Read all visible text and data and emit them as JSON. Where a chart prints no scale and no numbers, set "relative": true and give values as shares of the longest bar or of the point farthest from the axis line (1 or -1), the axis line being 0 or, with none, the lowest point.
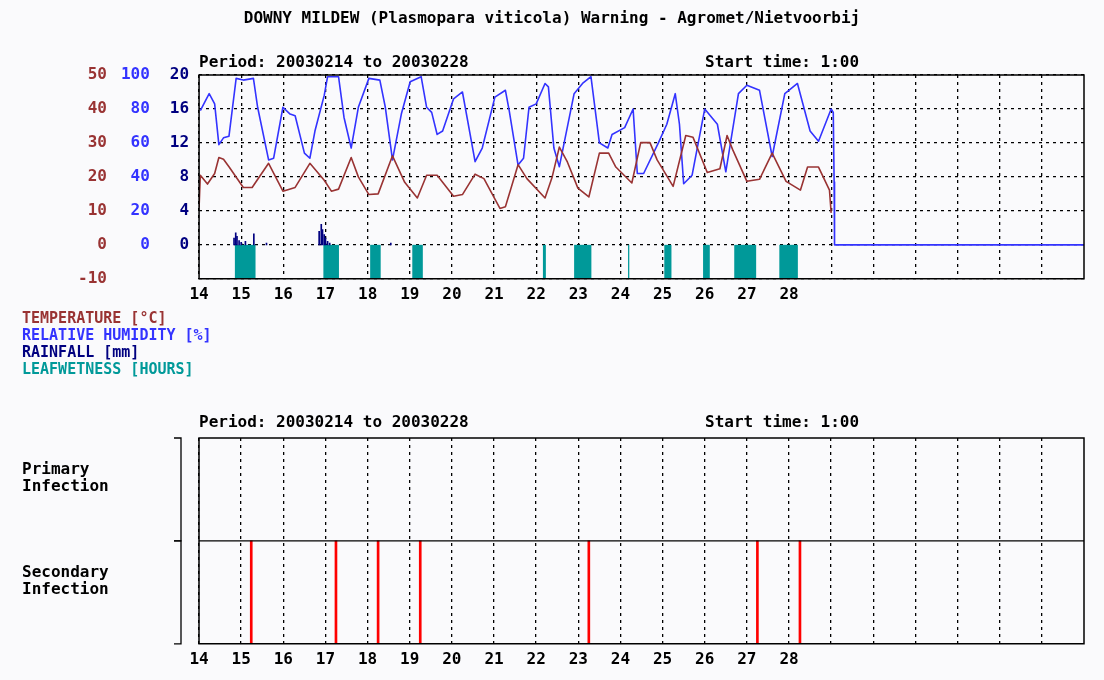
{
  "chart_data": [
    {
      "type": "line",
      "title": "DOWNY MILDEW (Plasmopara viticola) Warning - Agromet/Nietvoorbij",
      "subtitle": "Period: 20030214 to 20030228",
      "annotations": [
        "Start time: 1:00"
      ],
      "xlim": [
        14,
        35
      ],
      "xticks": [
        14,
        15,
        16,
        17,
        18,
        19,
        20,
        21,
        22,
        23,
        24,
        25,
        26,
        27,
        28,
        {
          "value": 29,
          "label": null
        },
        {
          "value": 30,
          "label": null
        },
        {
          "value": 31,
          "label": null
        },
        {
          "value": 32,
          "label": null
        },
        {
          "value": 33,
          "label": null
        },
        {
          "value": 34,
          "label": null
        }
      ],
      "ylim": [
        -10,
        50
      ],
      "yticks": [
        -10,
        0,
        10,
        20,
        30,
        40,
        50
      ],
      "y2lim": [
        -20,
        100
      ],
      "y2ticks": [
        0,
        20,
        40,
        60,
        80,
        100
      ],
      "y3lim": [
        -4,
        20
      ],
      "y3ticks": [
        0,
        4,
        8,
        12,
        16,
        20
      ],
      "grid": true,
      "legend": "bottom left",
      "series": [
        {
          "name": "TEMPERATURE [°C]",
          "color": "#993333",
          "x": [
            14.0,
            14.03,
            14.2,
            14.37,
            14.47,
            14.58,
            14.71,
            15.05,
            15.26,
            15.65,
            15.99,
            16.28,
            16.63,
            16.97,
            17.14,
            17.31,
            17.61,
            17.78,
            18.03,
            18.25,
            18.59,
            18.88,
            19.18,
            19.4,
            19.65,
            20.04,
            20.25,
            20.55,
            20.76,
            21.14,
            21.27,
            21.57,
            21.78,
            22.21,
            22.38,
            22.55,
            22.74,
            22.99,
            23.25,
            23.5,
            23.72,
            23.89,
            24.27,
            24.48,
            24.7,
            24.87,
            25.25,
            25.55,
            25.72,
            26.06,
            26.36,
            26.53,
            26.66,
            27.0,
            27.3,
            27.6,
            27.93,
            28.27,
            28.44,
            28.7,
            28.96,
            29.0
          ],
          "values": [
            11,
            20.5,
            17.9,
            21,
            25.7,
            25.2,
            23,
            16.9,
            16.9,
            24,
            15.8,
            16.9,
            24,
            19,
            15.8,
            16.4,
            25.7,
            20,
            14.8,
            15,
            26.2,
            18.4,
            13.8,
            20.5,
            20.5,
            14.3,
            14.8,
            20.8,
            19.5,
            10.7,
            11.2,
            23.6,
            19.5,
            13.8,
            20,
            28.8,
            24.4,
            16.7,
            14.1,
            27,
            27,
            22.9,
            18.2,
            30.1,
            30.1,
            25,
            17.2,
            32.2,
            31.7,
            21.3,
            22.4,
            32.2,
            28.1,
            18.7,
            19.3,
            27,
            18.7,
            16.1,
            22.9,
            22.9,
            16.1,
            9.4
          ]
        },
        {
          "name": "RELATIVE HUMIDITY [%]",
          "color": "#3333ff",
          "axis": "y2",
          "x": [
            14.03,
            14.24,
            14.37,
            14.47,
            14.58,
            14.71,
            14.88,
            15.05,
            15.29,
            15.39,
            15.65,
            15.77,
            15.99,
            16.16,
            16.28,
            16.5,
            16.63,
            16.75,
            16.97,
            17.05,
            17.31,
            17.44,
            17.61,
            17.78,
            18.03,
            18.29,
            18.42,
            18.59,
            18.8,
            19.01,
            19.27,
            19.4,
            19.52,
            19.65,
            19.78,
            20.04,
            20.25,
            20.55,
            20.72,
            21.02,
            21.27,
            21.36,
            21.57,
            21.7,
            21.83,
            22.0,
            22.21,
            22.29,
            22.42,
            22.55,
            22.9,
            23.1,
            23.3,
            23.5,
            23.7,
            23.8,
            24.1,
            24.3,
            24.4,
            24.55,
            24.9,
            25.1,
            25.3,
            25.4,
            25.5,
            25.7,
            26.0,
            26.3,
            26.5,
            26.8,
            27.0,
            27.3,
            27.6,
            27.9,
            28.2,
            28.5,
            28.7,
            29.0,
            29.05,
            29.07,
            29.08,
            35
          ],
          "values": [
            79,
            89,
            83,
            59,
            63,
            64,
            98,
            97,
            98,
            81,
            50,
            51,
            81,
            77,
            76,
            54,
            51,
            67,
            88,
            99,
            99,
            75,
            57,
            81,
            98,
            97,
            81,
            50,
            77,
            96,
            99,
            81,
            78,
            65,
            67,
            86,
            90,
            49,
            57,
            87,
            91,
            79,
            47,
            51,
            81,
            83,
            95,
            93,
            57,
            46,
            89,
            95,
            99,
            60,
            57,
            65,
            69,
            80,
            42,
            42,
            60,
            71,
            89,
            71,
            36,
            41,
            80,
            71,
            43,
            89,
            94,
            91,
            52,
            89,
            95,
            67,
            61,
            80,
            78,
            37,
            0,
            0
          ]
        },
        {
          "name": "RAINFALL [mm]",
          "color": "#000080",
          "type": "bar",
          "axis": "y3",
          "x": [
            14.83,
            14.87,
            14.9,
            14.95,
            15.0,
            15.1,
            15.3,
            15.6,
            16.85,
            16.9,
            16.93,
            16.97,
            17.0,
            17.05,
            17.1,
            18.55
          ],
          "values": [
            0.8,
            1.4,
            1.0,
            0.5,
            0.3,
            0.4,
            1.3,
            0.2,
            1.6,
            2.4,
            1.8,
            1.2,
            0.8,
            0.4,
            0.2,
            0.2
          ]
        }
      ],
      "bands": [
        {
          "axis": "x",
          "from": 14.85,
          "to": 15.34,
          "color": "#009999",
          "label": "LEAFWETNESS [HOURS]"
        },
        {
          "axis": "x",
          "from": 16.95,
          "to": 17.32,
          "color": "#009999"
        },
        {
          "axis": "x",
          "from": 18.06,
          "to": 18.31,
          "color": "#009999"
        },
        {
          "axis": "x",
          "from": 19.06,
          "to": 19.31,
          "color": "#009999"
        },
        {
          "axis": "x",
          "from": 22.16,
          "to": 22.23,
          "color": "#009999"
        },
        {
          "axis": "x",
          "from": 22.9,
          "to": 23.31,
          "color": "#009999"
        },
        {
          "axis": "x",
          "from": 24.18,
          "to": 24.21,
          "color": "#009999"
        },
        {
          "axis": "x",
          "from": 25.04,
          "to": 25.21,
          "color": "#009999"
        },
        {
          "axis": "x",
          "from": 25.96,
          "to": 26.12,
          "color": "#009999"
        },
        {
          "axis": "x",
          "from": 26.7,
          "to": 27.22,
          "color": "#009999"
        },
        {
          "axis": "x",
          "from": 27.77,
          "to": 28.21,
          "color": "#009999"
        }
      ]
    },
    {
      "type": "bar",
      "relative": true,
      "subtitle": "Period: 20030214 to 20030228",
      "annotations": [
        "Start time: 1:00"
      ],
      "xlim": [
        14,
        35
      ],
      "xticks": [
        14,
        15,
        16,
        17,
        18,
        19,
        20,
        21,
        22,
        23,
        24,
        25,
        26,
        27,
        28,
        {
          "value": 29,
          "label": null
        },
        {
          "value": 30,
          "label": null
        },
        {
          "value": 31,
          "label": null
        },
        {
          "value": 32,
          "label": null
        },
        {
          "value": 33,
          "label": null
        },
        {
          "value": 34,
          "label": null
        }
      ],
      "grid": "x",
      "series": [
        {
          "name": "Primary Infection"
        },
        {
          "name": "Secondary Infection",
          "color": "#ff0000",
          "x": [
            15.24,
            17.25,
            18.25,
            19.25,
            23.25,
            27.25,
            28.26
          ],
          "values": [
            1,
            1,
            1,
            1,
            1,
            1,
            1
          ]
        }
      ]
    }
  ]
}
